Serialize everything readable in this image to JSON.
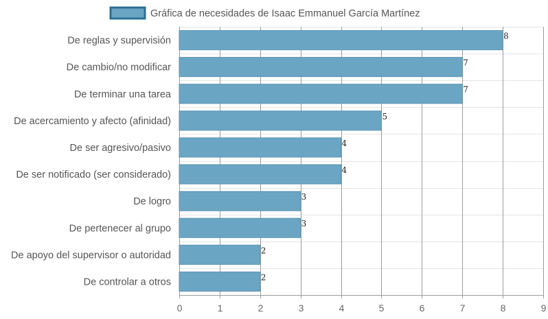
{
  "chart_data": {
    "type": "bar",
    "orientation": "horizontal",
    "categories": [
      "De reglas y supervisión",
      "De cambio/no modificar",
      "De terminar una tarea",
      "De acercamiento y afecto (afinidad)",
      "De ser agresivo/pasivo",
      "De ser notificado (ser considerado)",
      "De logro",
      "De pertenecer al grupo",
      "De apoyo del supervisor o autoridad",
      "De controlar a otros"
    ],
    "series": [
      {
        "name": "Gráfica de necesidades de Isaac Emmanuel García Martínez",
        "values": [
          8,
          7,
          7,
          5,
          4,
          4,
          3,
          3,
          2,
          2
        ],
        "color": "#6ba5c4"
      }
    ],
    "xlim": [
      0,
      9
    ],
    "xticks": [
      "0",
      "1",
      "2",
      "3",
      "4",
      "5",
      "6",
      "7",
      "8",
      "9"
    ],
    "grid": true,
    "legend": "top-center",
    "data_labels": [
      "8",
      "7",
      "7",
      "5",
      "4",
      "4",
      "3",
      "3",
      "2",
      "2"
    ]
  }
}
